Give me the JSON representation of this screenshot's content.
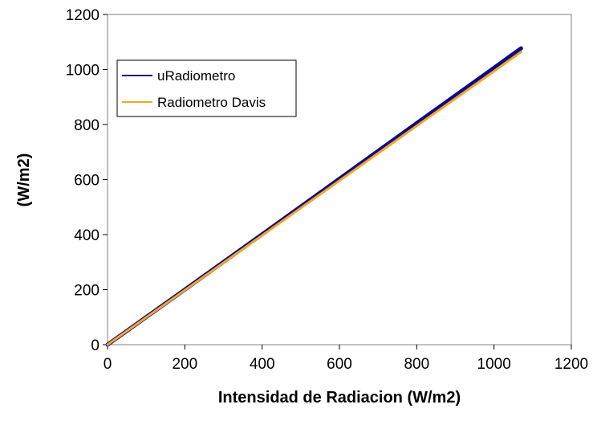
{
  "chart_data": {
    "type": "line",
    "xlabel": "Intensidad de Radiacion (W/m2)",
    "ylabel": "(W/m2)",
    "xlim": [
      0,
      1200
    ],
    "ylim": [
      0,
      1200
    ],
    "xticks": [
      "0",
      "200",
      "400",
      "600",
      "800",
      "1000",
      "1200"
    ],
    "yticks": [
      "0",
      "200",
      "400",
      "600",
      "800",
      "1000",
      "1200"
    ],
    "grid": false,
    "legend_position": "upper-left",
    "series": [
      {
        "name": "uRadiometro",
        "color": "#0a0a8c",
        "x": [
          0,
          200,
          400,
          600,
          800,
          1000,
          1070
        ],
        "y": [
          0,
          200,
          401,
          603,
          805,
          1006,
          1077
        ]
      },
      {
        "name": "Radiometro Davis",
        "color": "#f5a623",
        "x": [
          0,
          200,
          400,
          600,
          800,
          1000,
          1070
        ],
        "y": [
          0,
          198,
          397,
          596,
          795,
          994,
          1064
        ]
      }
    ]
  }
}
